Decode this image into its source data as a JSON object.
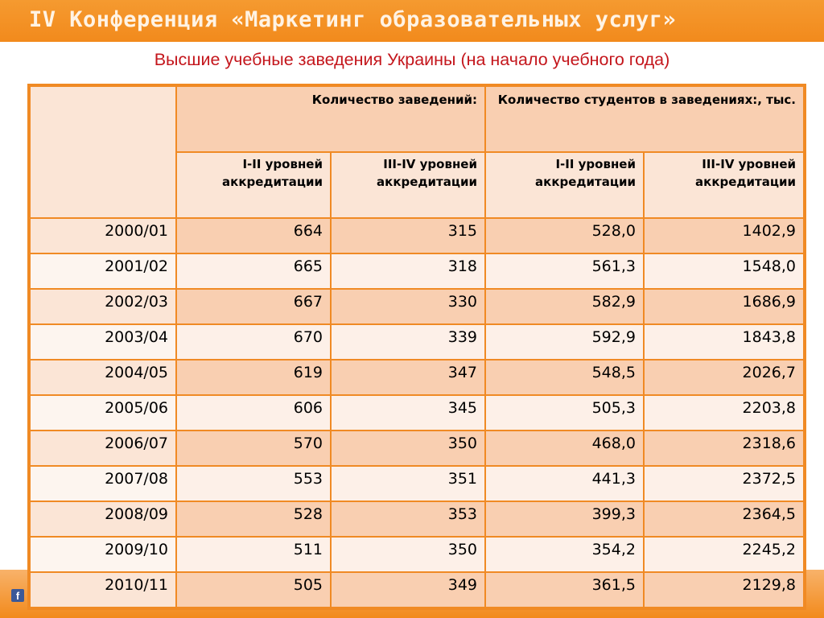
{
  "header": {
    "banner_title": "IV Конференция «Маркетинг образовательных услуг»",
    "subtitle": "Высшие учебные заведения Украины (на начало учебного года)"
  },
  "table": {
    "group_headers": [
      "Количество заведений:",
      "Количество студентов  в заведениях:, тыс."
    ],
    "sub_headers": [
      "I-II уровней аккредитации",
      "III-IV уровней аккредитации",
      "I-II уровней аккредитации",
      "III-IV уровней аккредитации"
    ],
    "rows": [
      {
        "year": "2000/01",
        "inst_12": "664",
        "inst_34": "315",
        "stud_12": "528,0",
        "stud_34": "1402,9"
      },
      {
        "year": "2001/02",
        "inst_12": "665",
        "inst_34": "318",
        "stud_12": "561,3",
        "stud_34": "1548,0"
      },
      {
        "year": "2002/03",
        "inst_12": "667",
        "inst_34": "330",
        "stud_12": "582,9",
        "stud_34": "1686,9"
      },
      {
        "year": "2003/04",
        "inst_12": "670",
        "inst_34": "339",
        "stud_12": "592,9",
        "stud_34": "1843,8"
      },
      {
        "year": "2004/05",
        "inst_12": "619",
        "inst_34": "347",
        "stud_12": "548,5",
        "stud_34": "2026,7"
      },
      {
        "year": "2005/06",
        "inst_12": "606",
        "inst_34": "345",
        "stud_12": "505,3",
        "stud_34": "2203,8"
      },
      {
        "year": "2006/07",
        "inst_12": "570",
        "inst_34": "350",
        "stud_12": "468,0",
        "stud_34": "2318,6"
      },
      {
        "year": "2007/08",
        "inst_12": "553",
        "inst_34": "351",
        "stud_12": "441,3",
        "stud_34": "2372,5"
      },
      {
        "year": "2008/09",
        "inst_12": "528",
        "inst_34": "353",
        "stud_12": "399,3",
        "stud_34": "2364,5"
      },
      {
        "year": "2009/10",
        "inst_12": "511",
        "inst_34": "350",
        "stud_12": "354,2",
        "stud_34": "2245,2"
      },
      {
        "year": "2010/11",
        "inst_12": "505",
        "inst_34": "349",
        "stud_12": "361,5",
        "stud_34": "2129,8"
      }
    ]
  },
  "footer": {
    "facebook_icon": "facebook-icon",
    "facebook_glyph": "f"
  },
  "colors": {
    "banner": "#f28a1c",
    "subtitle": "#c4161c",
    "table_border": "#f08a24",
    "row_dark": "#f9cfb1",
    "row_light": "#fdf0e8"
  }
}
